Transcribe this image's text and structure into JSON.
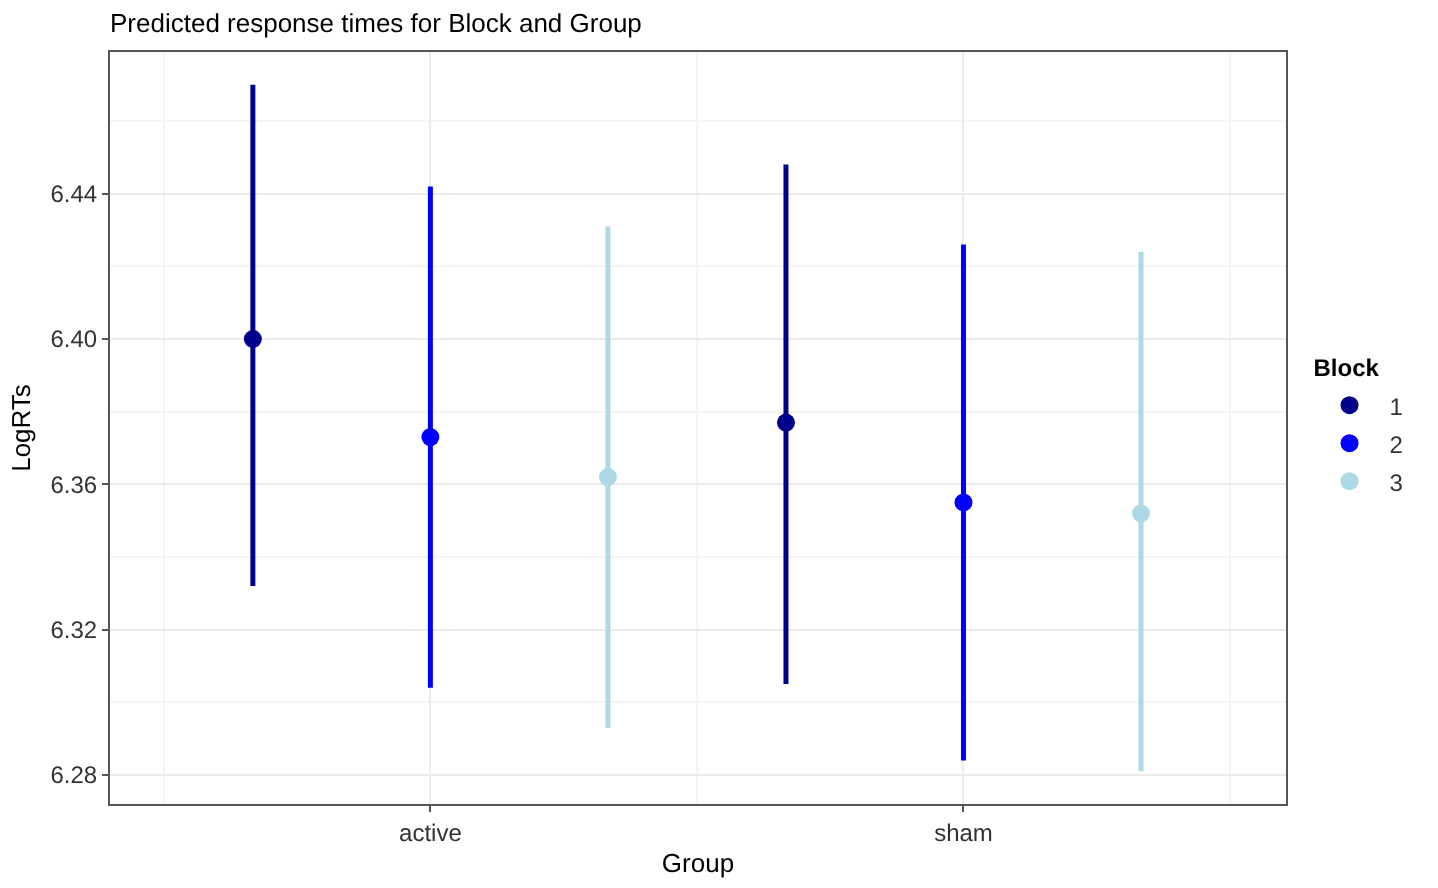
{
  "chart_data": {
    "type": "scatter",
    "title": "Predicted response times for Block and Group",
    "xlabel": "Group",
    "ylabel": "LogRTs",
    "legend_title": "Block",
    "categories": [
      "active",
      "sham"
    ],
    "series": [
      {
        "name": "1",
        "color": "#00008b",
        "values": [
          6.4,
          6.377
        ],
        "errors": [
          [
            6.332,
            6.47
          ],
          [
            6.305,
            6.448
          ]
        ]
      },
      {
        "name": "2",
        "color": "#0000ff",
        "values": [
          6.373,
          6.355
        ],
        "errors": [
          [
            6.304,
            6.442
          ],
          [
            6.284,
            6.426
          ]
        ]
      },
      {
        "name": "3",
        "color": "#add8e6",
        "values": [
          6.362,
          6.352
        ],
        "errors": [
          [
            6.293,
            6.431
          ],
          [
            6.281,
            6.424
          ]
        ]
      }
    ],
    "ylim": [
      6.272,
      6.479
    ],
    "yticks": [
      6.28,
      6.32,
      6.36,
      {
        "value": 6.4,
        "label": "6.40"
      },
      6.44
    ],
    "grid": true,
    "legend": "right",
    "marker": "circle"
  }
}
